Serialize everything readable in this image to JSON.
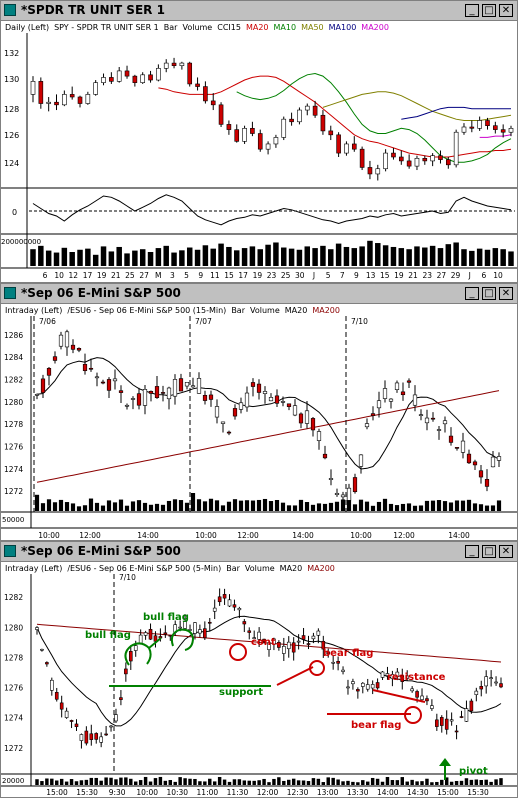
{
  "windows": [
    {
      "title": "*SPDR TR UNIT SER 1",
      "info": [
        {
          "text": "Daily  (Left)",
          "color": "#000000"
        },
        {
          "text": "SPY - SPDR TR UNIT SER 1",
          "color": "#000000"
        },
        {
          "text": "Bar",
          "color": "#000000"
        },
        {
          "text": "Volume",
          "color": "#000000"
        },
        {
          "text": "CCI15",
          "color": "#000000"
        },
        {
          "text": "MA20",
          "color": "#cc0000"
        },
        {
          "text": "MA10",
          "color": "#008000"
        },
        {
          "text": "MA50",
          "color": "#808000"
        },
        {
          "text": "MA100",
          "color": "#000080"
        },
        {
          "text": "MA200",
          "color": "#cc00cc"
        }
      ],
      "price_axis": [
        "132",
        "130",
        "128",
        "126",
        "124"
      ],
      "cci_axis": [
        "0"
      ],
      "vol_axis": [
        "200000000"
      ],
      "x_labels": [
        "6",
        "10",
        "12",
        "17",
        "19",
        "21",
        "25",
        "27",
        "M",
        "3",
        "5",
        "9",
        "11",
        "15",
        "17",
        "19",
        "23",
        "25",
        "30",
        "J",
        "5",
        "7",
        "9",
        "13",
        "15",
        "19",
        "21",
        "23",
        "27",
        "29",
        "J",
        "6",
        "10"
      ]
    },
    {
      "title": "*Sep 06  E-Mini S&P 500",
      "info": [
        {
          "text": "Intraday  (Left)",
          "color": "#000000"
        },
        {
          "text": "/ESU6 - Sep 06  E-Mini S&P 500  (15-Min)",
          "color": "#000000"
        },
        {
          "text": "Bar",
          "color": "#000000"
        },
        {
          "text": "Volume",
          "color": "#000000"
        },
        {
          "text": "MA20",
          "color": "#000000"
        },
        {
          "text": "MA200",
          "color": "#8b0000"
        }
      ],
      "date_markers": [
        "7/06",
        "7/07",
        "7/10"
      ],
      "price_axis": [
        "1286",
        "1284",
        "1282",
        "1280",
        "1278",
        "1276",
        "1274",
        "1272"
      ],
      "vol_axis": [
        "50000"
      ],
      "x_labels": [
        "10:00",
        "12:00",
        "14:00",
        "10:00",
        "12:00",
        "14:00",
        "10:00",
        "12:00",
        "14:00"
      ]
    },
    {
      "title": "*Sep 06  E-Mini S&P 500",
      "info": [
        {
          "text": "Intraday  (Left)",
          "color": "#000000"
        },
        {
          "text": "/ESU6 - Sep 06  E-Mini S&P 500  (5-Min)",
          "color": "#000000"
        },
        {
          "text": "Bar",
          "color": "#000000"
        },
        {
          "text": "Volume",
          "color": "#000000"
        },
        {
          "text": "MA20",
          "color": "#000000"
        },
        {
          "text": "MA200",
          "color": "#8b0000"
        }
      ],
      "date_markers": [
        "7/10"
      ],
      "price_axis": [
        "1282",
        "1280",
        "1278",
        "1276",
        "1274",
        "1272"
      ],
      "vol_axis": [
        "20000"
      ],
      "x_labels": [
        "15:00",
        "15:30",
        "9:30",
        "10:00",
        "10:30",
        "11:00",
        "11:30",
        "12:00",
        "12:30",
        "13:00",
        "13:30",
        "14:00",
        "14:30",
        "15:00",
        "15:30"
      ],
      "annotations": {
        "bull_flag_1": "bull flag",
        "bull_flag_2": "bull flag",
        "cont": "cont.",
        "bear_flag_1": "bear flag",
        "support": "support",
        "resistance": "resistance",
        "bear_flag_2": "bear flag",
        "pivot": "pivot"
      }
    }
  ],
  "buttons": {
    "minimize": "_",
    "maximize": "□",
    "close": "✕"
  },
  "colors": {
    "up": "#ffffff",
    "down": "#cc0000",
    "wick": "#000000",
    "green": "#008000",
    "red": "#cc0000",
    "ma200": "#8b0000"
  },
  "chart_data": [
    {
      "type": "candlestick",
      "title": "*SPDR TR UNIT SER 1",
      "ylim": [
        122.5,
        134
      ],
      "y_ticks": [
        124,
        126,
        128,
        130,
        132
      ],
      "x_tick_labels": [
        "6",
        "10",
        "12",
        "17",
        "19",
        "21",
        "25",
        "27",
        "M",
        "3",
        "5",
        "9",
        "11",
        "15",
        "17",
        "19",
        "23",
        "25",
        "30",
        "J",
        "5",
        "7",
        "9",
        "13",
        "15",
        "19",
        "21",
        "23",
        "27",
        "29",
        "J",
        "6",
        "10"
      ],
      "ohlc": [
        [
          129.6,
          131.0,
          129.0,
          130.6
        ],
        [
          130.6,
          130.9,
          128.5,
          128.9
        ],
        [
          128.9,
          129.4,
          128.3,
          129.0
        ],
        [
          129.0,
          129.6,
          128.4,
          128.8
        ],
        [
          128.8,
          129.9,
          128.7,
          129.6
        ],
        [
          129.6,
          130.2,
          129.2,
          129.4
        ],
        [
          129.4,
          129.5,
          128.6,
          128.9
        ],
        [
          128.9,
          129.8,
          128.8,
          129.6
        ],
        [
          129.6,
          130.7,
          129.5,
          130.5
        ],
        [
          130.5,
          131.2,
          130.3,
          130.9
        ],
        [
          130.9,
          131.3,
          130.4,
          130.6
        ],
        [
          130.6,
          131.7,
          130.5,
          131.4
        ],
        [
          131.4,
          131.8,
          130.8,
          131.0
        ],
        [
          131.0,
          131.1,
          130.2,
          130.5
        ],
        [
          130.5,
          131.3,
          130.4,
          131.1
        ],
        [
          131.1,
          131.4,
          130.5,
          130.7
        ],
        [
          130.7,
          131.9,
          130.6,
          131.6
        ],
        [
          131.6,
          132.3,
          131.3,
          132.0
        ],
        [
          132.0,
          132.4,
          131.6,
          131.8
        ],
        [
          131.8,
          132.1,
          131.5,
          132.0
        ],
        [
          132.0,
          132.1,
          130.2,
          130.4
        ],
        [
          130.4,
          130.9,
          129.9,
          130.2
        ],
        [
          130.2,
          130.6,
          128.9,
          129.1
        ],
        [
          129.1,
          129.7,
          128.4,
          128.8
        ],
        [
          128.8,
          129.0,
          127.1,
          127.3
        ],
        [
          127.3,
          127.6,
          126.5,
          126.9
        ],
        [
          126.9,
          127.3,
          125.9,
          126.0
        ],
        [
          126.0,
          127.2,
          125.8,
          127.0
        ],
        [
          127.0,
          127.5,
          126.4,
          126.6
        ],
        [
          126.6,
          126.9,
          125.2,
          125.4
        ],
        [
          125.4,
          126.0,
          125.0,
          125.8
        ],
        [
          125.8,
          126.5,
          125.5,
          126.3
        ],
        [
          126.3,
          127.9,
          126.1,
          127.7
        ],
        [
          127.7,
          128.2,
          127.2,
          127.5
        ],
        [
          127.5,
          128.6,
          127.3,
          128.4
        ],
        [
          128.4,
          128.9,
          128.0,
          128.7
        ],
        [
          128.7,
          129.1,
          127.8,
          128.0
        ],
        [
          128.0,
          128.4,
          126.5,
          126.8
        ],
        [
          126.8,
          127.2,
          126.1,
          126.5
        ],
        [
          126.5,
          126.7,
          124.8,
          125.1
        ],
        [
          125.1,
          126.0,
          124.9,
          125.8
        ],
        [
          125.8,
          126.4,
          125.2,
          125.4
        ],
        [
          125.4,
          125.6,
          123.8,
          124.0
        ],
        [
          124.0,
          124.5,
          123.1,
          123.5
        ],
        [
          123.5,
          124.2,
          123.0,
          123.9
        ],
        [
          123.9,
          125.4,
          123.7,
          125.1
        ],
        [
          125.1,
          125.5,
          124.6,
          124.8
        ],
        [
          124.8,
          125.3,
          124.2,
          124.5
        ],
        [
          124.5,
          125.0,
          123.9,
          124.1
        ],
        [
          124.1,
          124.9,
          123.8,
          124.7
        ],
        [
          124.7,
          124.9,
          124.2,
          124.5
        ],
        [
          124.5,
          125.1,
          124.1,
          124.9
        ],
        [
          124.9,
          125.3,
          124.3,
          124.6
        ],
        [
          124.6,
          124.8,
          123.9,
          124.2
        ],
        [
          124.2,
          126.9,
          124.0,
          126.7
        ],
        [
          126.7,
          127.4,
          126.5,
          127.1
        ],
        [
          127.1,
          127.6,
          126.7,
          127.0
        ],
        [
          127.0,
          127.9,
          126.8,
          127.6
        ],
        [
          127.6,
          127.8,
          126.9,
          127.2
        ],
        [
          127.2,
          127.5,
          126.6,
          126.9
        ],
        [
          126.9,
          127.3,
          126.3,
          126.7
        ],
        [
          126.7,
          127.2,
          126.4,
          127.0
        ]
      ],
      "volume": [
        60,
        72,
        55,
        48,
        65,
        50,
        58,
        62,
        40,
        70,
        52,
        68,
        45,
        55,
        60,
        50,
        64,
        72,
        48,
        56,
        66,
        58,
        74,
        62,
        80,
        68,
        56,
        64,
        70,
        60,
        76,
        84,
        66,
        62,
        58,
        70,
        64,
        72,
        60,
        80,
        68,
        64,
        70,
        90,
        82,
        74,
        68,
        64,
        60,
        70,
        66,
        72,
        64,
        78,
        84,
        60,
        54,
        62,
        58,
        64,
        60,
        52
      ],
      "cci": [
        30,
        10,
        -10,
        -20,
        -40,
        -15,
        5,
        20,
        40,
        60,
        55,
        40,
        20,
        0,
        15,
        30,
        50,
        65,
        55,
        40,
        10,
        -20,
        -35,
        -45,
        -55,
        -40,
        -30,
        -25,
        -15,
        -20,
        -10,
        0,
        10,
        5,
        -5,
        -15,
        -25,
        -35,
        -40,
        -50,
        -40,
        -35,
        -30,
        -20,
        -25,
        -15,
        -10,
        -20,
        -15,
        -10,
        -5,
        0,
        -10,
        -5,
        40,
        55,
        40,
        30,
        20,
        15,
        10,
        5
      ],
      "ma_series": [
        {
          "name": "MA20",
          "color": "#cc0000",
          "values": [
            130.1,
            130.0,
            129.8,
            129.7,
            129.6,
            129.6,
            129.6,
            129.6,
            129.8,
            130.1,
            130.4,
            130.7,
            130.9,
            131.0,
            131.0,
            130.9,
            130.6,
            130.2,
            129.8,
            129.4,
            129.0,
            128.5,
            128.0,
            127.5,
            127.0,
            126.5,
            126.2,
            126.0,
            125.9,
            125.7,
            125.5,
            125.3,
            125.1,
            125.0,
            124.9,
            124.8,
            124.8,
            124.8,
            124.9,
            125.0,
            125.1,
            125.2,
            125.2,
            125.3,
            125.3,
            125.4
          ]
        },
        {
          "name": "MA10",
          "color": "#008000",
          "values": [
            129.8,
            129.5,
            129.3,
            129.2,
            129.3,
            129.5,
            129.9,
            130.4,
            130.8,
            131.1,
            131.2,
            131.0,
            130.5,
            129.8,
            129.0,
            128.1,
            127.3,
            126.8,
            126.6,
            126.6,
            126.8,
            127.0,
            126.9,
            126.6,
            126.1,
            125.5,
            124.9,
            124.6,
            124.4,
            124.4,
            124.5,
            124.7,
            125.0,
            125.5,
            125.9,
            126.2
          ]
        },
        {
          "name": "MA50",
          "color": "#808000",
          "values": [
            128.6,
            128.8,
            129.0,
            129.2,
            129.4,
            129.6,
            129.7,
            129.8,
            129.8,
            129.7,
            129.5,
            129.2,
            128.9,
            128.6,
            128.3,
            128.1,
            127.9,
            127.7,
            127.6,
            127.6,
            127.6,
            127.7,
            127.8,
            127.9,
            128.0
          ]
        },
        {
          "name": "MA100",
          "color": "#000080",
          "values": [
            127.7,
            127.8,
            127.9,
            128.1,
            128.3,
            128.5,
            128.6,
            128.6,
            128.6,
            128.5,
            128.5,
            128.5,
            128.5,
            128.5,
            128.5
          ]
        },
        {
          "name": "MA200",
          "color": "#cc00cc",
          "values": [
            126.3,
            126.3,
            126.4,
            126.4,
            126.5
          ]
        }
      ]
    },
    {
      "type": "candlestick",
      "title": "*Sep 06  E-Mini S&P 500 (15-Min)",
      "ylim": [
        1270.5,
        1287.5
      ],
      "y_ticks": [
        1272,
        1274,
        1276,
        1278,
        1280,
        1282,
        1284,
        1286
      ],
      "x_tick_labels": [
        "10:00",
        "12:00",
        "14:00",
        "10:00",
        "12:00",
        "14:00",
        "10:00",
        "12:00",
        "14:00"
      ],
      "ohlc_count": 78,
      "ma_series": [
        {
          "name": "MA20",
          "color": "#000000"
        },
        {
          "name": "MA200",
          "color": "#8b0000"
        }
      ]
    },
    {
      "type": "candlestick",
      "title": "*Sep 06  E-Mini S&P 500 (5-Min)",
      "ylim": [
        1270.8,
        1283.4
      ],
      "y_ticks": [
        1272,
        1274,
        1276,
        1278,
        1280,
        1282
      ],
      "x_tick_labels": [
        "15:00",
        "15:30",
        "9:30",
        "10:00",
        "10:30",
        "11:00",
        "11:30",
        "12:00",
        "12:30",
        "13:00",
        "13:30",
        "14:00",
        "14:30",
        "15:00",
        "15:30"
      ],
      "ma_series": [
        {
          "name": "MA20",
          "color": "#000000"
        },
        {
          "name": "MA200",
          "color": "#8b0000"
        }
      ]
    }
  ]
}
